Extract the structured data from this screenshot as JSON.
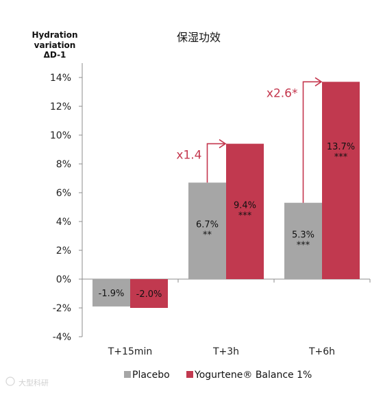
{
  "chart_data": {
    "type": "bar",
    "title": "保湿功效",
    "ylabel_lines": [
      "Hydration",
      "variation",
      "ΔD-1"
    ],
    "xlabel": "",
    "ylim": [
      -4,
      14
    ],
    "ytick_step": 2,
    "ytick_labels": [
      "-4%",
      "-2%",
      "0%",
      "2%",
      "4%",
      "6%",
      "8%",
      "10%",
      "12%",
      "14%"
    ],
    "categories": [
      "T+15min",
      "T+3h",
      "T+6h"
    ],
    "series": [
      {
        "name": "Placebo",
        "color": "#a6a6a6",
        "values": [
          -1.9,
          6.7,
          5.3
        ],
        "labels": [
          "-1.9%",
          "6.7%",
          "5.3%"
        ],
        "significance": [
          "",
          "**",
          "***"
        ]
      },
      {
        "name": "Yogurtene® Balance 1%",
        "color": "#c1394f",
        "values": [
          -2.0,
          9.4,
          13.7
        ],
        "labels": [
          "-2.0%",
          "9.4%",
          "13.7%"
        ],
        "significance": [
          "",
          "***",
          "***"
        ]
      }
    ],
    "annotations": [
      {
        "category_index": 1,
        "text": "x1.4"
      },
      {
        "category_index": 2,
        "text": "x2.6*"
      }
    ],
    "annotation_color": "#c4364d",
    "grid": false,
    "legend_position": "bottom"
  },
  "watermark": "大型科研"
}
